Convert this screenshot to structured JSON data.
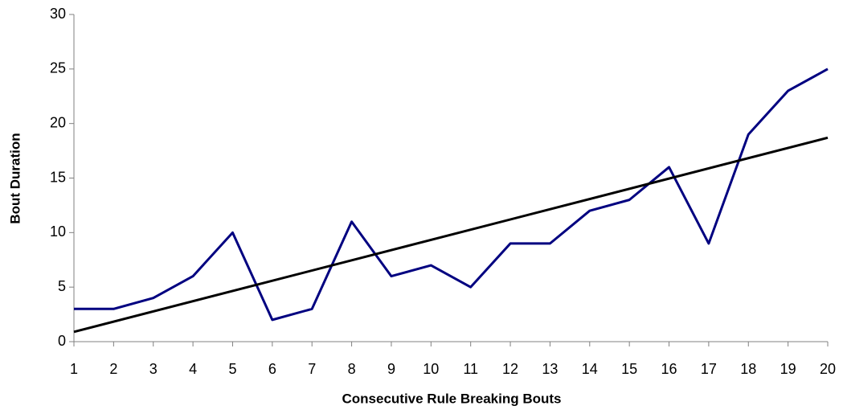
{
  "chart_data": {
    "type": "line",
    "x_label": "Consecutive Rule Breaking Bouts",
    "y_label": "Bout Duration",
    "x": [
      1,
      2,
      3,
      4,
      5,
      6,
      7,
      8,
      9,
      10,
      11,
      12,
      13,
      14,
      15,
      16,
      17,
      18,
      19,
      20
    ],
    "series": [
      {
        "color": "#000080",
        "values": [
          3,
          3,
          4,
          6,
          10,
          2,
          3,
          11,
          6,
          7,
          5,
          9,
          9,
          12,
          13,
          16,
          9,
          19,
          23,
          25
        ]
      },
      {
        "color": "#000000",
        "x": [
          1,
          20
        ],
        "values": [
          0.9,
          18.7
        ]
      }
    ],
    "xlim": [
      1,
      20
    ],
    "xticks": [
      1,
      2,
      3,
      4,
      5,
      6,
      7,
      8,
      9,
      10,
      11,
      12,
      13,
      14,
      15,
      16,
      17,
      18,
      19,
      20
    ],
    "ylim": [
      0,
      30
    ],
    "yticks": [
      0,
      5,
      10,
      15,
      20,
      25,
      30
    ],
    "grid": false
  }
}
